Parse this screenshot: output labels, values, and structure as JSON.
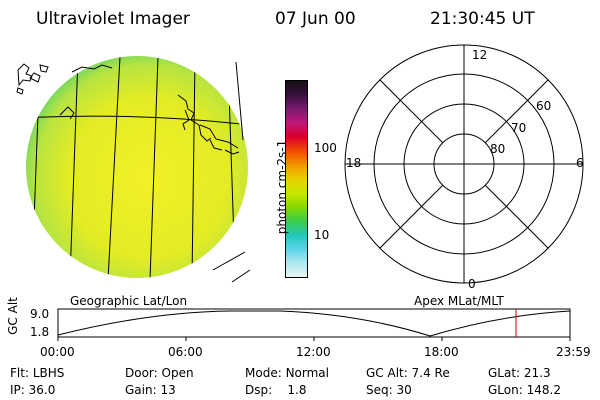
{
  "header": {
    "title": "Ultraviolet Imager",
    "date": "07 Jun 00",
    "time": "21:30:45 UT"
  },
  "colorbar": {
    "unit_label": "photon cm-2s-1",
    "ticks": [
      "100",
      "10"
    ],
    "colors": [
      "#111111",
      "#3a1040",
      "#7a1a6e",
      "#c0177a",
      "#d9002a",
      "#f04a00",
      "#f59400",
      "#e8d000",
      "#c8e800",
      "#86d800",
      "#3ccd4a",
      "#22c6b8",
      "#5ad4e8",
      "#b0e8f0",
      "#e8f4f4"
    ]
  },
  "globe": {
    "label": "Geographic Lat/Lon",
    "fill_main": "#e6ee22",
    "fill_edge": "#5fd36a"
  },
  "polar": {
    "label": "Apex MLat/MLT",
    "mlt_labels": {
      "top": "12",
      "left": "18",
      "right": "6",
      "bottom": "0"
    },
    "lat_labels": [
      "60",
      "70",
      "80"
    ]
  },
  "altitude_plot": {
    "ylabel": "GC Alt",
    "yticks": [
      "9.0",
      "1.8"
    ],
    "xticks": [
      "00:00",
      "06:00",
      "12:00",
      "18:00",
      "23:59"
    ],
    "marker_color": "#cc0000"
  },
  "info": {
    "flt_label": "Flt:",
    "flt": "LBHS",
    "ip_label": "IP:",
    "ip": "36.0",
    "door_label": "Door:",
    "door": "Open",
    "gain_label": "Gain:",
    "gain": "13",
    "mode_label": "Mode:",
    "mode": "Normal",
    "dsp_label": "Dsp:",
    "dsp": "1.8",
    "gcalt_label": "GC Alt:",
    "gcalt": "7.4 Re",
    "seq_label": "Seq:",
    "seq": "30",
    "glat_label": "GLat:",
    "glat": "21.3",
    "glon_label": "GLon:",
    "glon": "148.2"
  }
}
